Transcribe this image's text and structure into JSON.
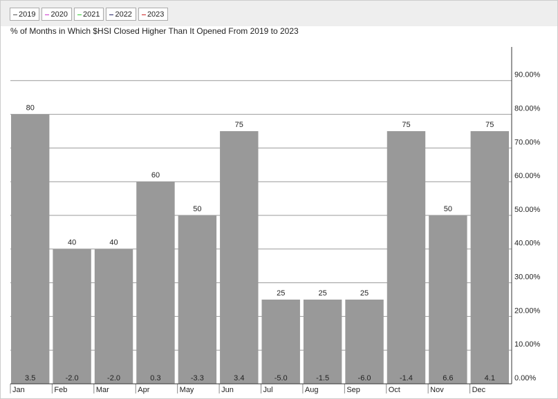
{
  "chart_data": {
    "type": "bar",
    "title": "% of Months in Which $HSI Closed Higher Than It Opened From 2019 to 2023",
    "legend": [
      {
        "name": "2019",
        "color": "#555555"
      },
      {
        "name": "2020",
        "color": "#cc33cc"
      },
      {
        "name": "2021",
        "color": "#33cc33"
      },
      {
        "name": "2022",
        "color": "#222266"
      },
      {
        "name": "2023",
        "color": "#cc2222"
      }
    ],
    "categories": [
      "Jan",
      "Feb",
      "Mar",
      "Apr",
      "May",
      "Jun",
      "Jul",
      "Aug",
      "Sep",
      "Oct",
      "Nov",
      "Dec"
    ],
    "values": [
      80,
      40,
      40,
      60,
      50,
      75,
      25,
      25,
      25,
      75,
      50,
      75
    ],
    "color": "#999999",
    "bottom_values": [
      3.5,
      -2.0,
      -2.0,
      0.3,
      -3.3,
      3.4,
      -5.0,
      -1.5,
      -6.0,
      -1.4,
      6.6,
      4.1
    ],
    "bottom_value_labels": [
      "3.5",
      "-2.0",
      "-2.0",
      "0.3",
      "-3.3",
      "3.4",
      "-5.0",
      "-1.5",
      "-6.0",
      "-1.4",
      "6.6",
      "4.1"
    ],
    "ylim": [
      0,
      100
    ],
    "yticks": [
      {
        "value": 0,
        "label": "0.00%"
      },
      {
        "value": 10,
        "label": "10.00%"
      },
      {
        "value": 20,
        "label": "20.00%"
      },
      {
        "value": 30,
        "label": "30.00%"
      },
      {
        "value": 40,
        "label": "40.00%"
      },
      {
        "value": 50,
        "label": "50.00%"
      },
      {
        "value": 60,
        "label": "60.00%"
      },
      {
        "value": 70,
        "label": "70.00%"
      },
      {
        "value": 80,
        "label": "80.00%"
      },
      {
        "value": 90,
        "label": "90.00%"
      }
    ],
    "grid": true
  }
}
